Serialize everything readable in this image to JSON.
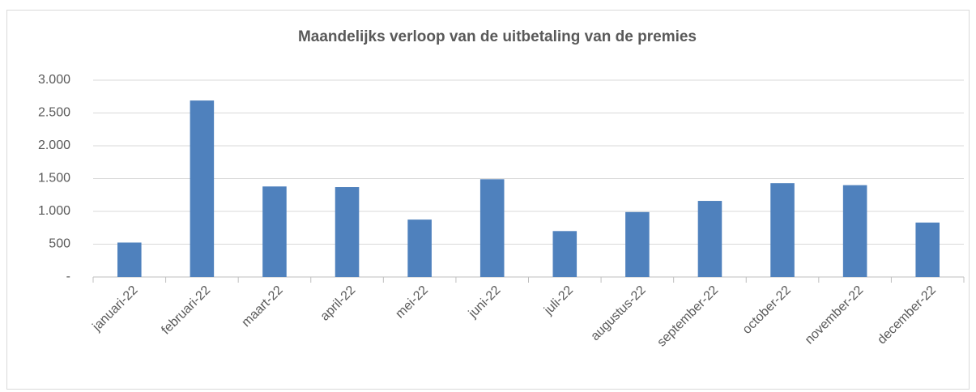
{
  "chart_data": {
    "type": "bar",
    "title": "Maandelijks verloop van de uitbetaling van de premies",
    "categories": [
      "januari-22",
      "februari-22",
      "maart-22",
      "april-22",
      "mei-22",
      "juni-22",
      "juli-22",
      "augustus-22",
      "september-22",
      "october-22",
      "november-22",
      "december-22"
    ],
    "values": [
      525,
      2690,
      1380,
      1370,
      875,
      1490,
      700,
      990,
      1160,
      1430,
      1400,
      830
    ],
    "color": "#4f81bd",
    "ylim": [
      0,
      3000
    ],
    "yticks": [
      {
        "value": 0,
        "label": "-"
      },
      {
        "value": 500,
        "label": "500"
      },
      {
        "value": 1000,
        "label": "1.000"
      },
      {
        "value": 1500,
        "label": "1.500"
      },
      {
        "value": 2000,
        "label": "2.000"
      },
      {
        "value": 2500,
        "label": "2.500"
      },
      {
        "value": 3000,
        "label": "3.000"
      }
    ],
    "grid": true
  }
}
